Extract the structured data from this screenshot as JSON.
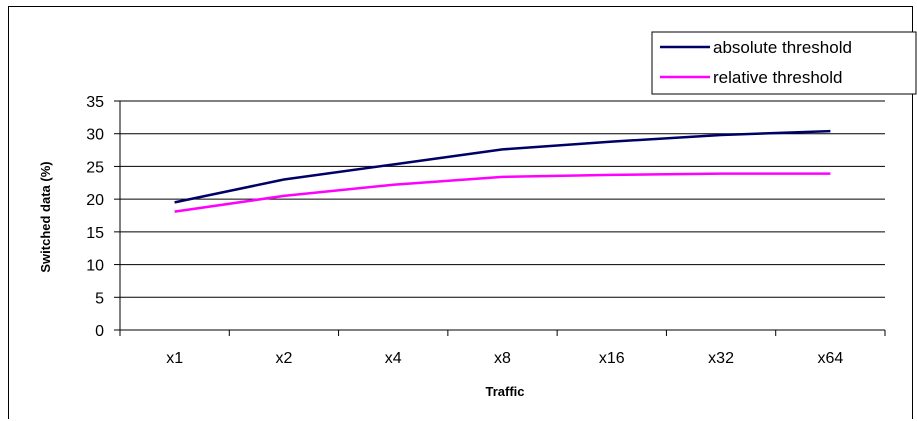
{
  "chart_data": {
    "type": "line",
    "xlabel": "Traffic",
    "ylabel": "Switched data (%)",
    "categories": [
      "x1",
      "x2",
      "x4",
      "x8",
      "x16",
      "x32",
      "x64"
    ],
    "ylim": [
      0,
      35
    ],
    "yticks": [
      0,
      5,
      10,
      15,
      20,
      25,
      30,
      35
    ],
    "grid": true,
    "legend_position": "top-right",
    "series": [
      {
        "name": "absolute threshold",
        "color": "#000066",
        "values": [
          19.5,
          23.0,
          25.3,
          27.6,
          28.8,
          29.8,
          30.4
        ]
      },
      {
        "name": "relative threshold",
        "color": "#ff00ff",
        "values": [
          18.1,
          20.5,
          22.2,
          23.4,
          23.7,
          23.9,
          23.9
        ]
      }
    ]
  }
}
